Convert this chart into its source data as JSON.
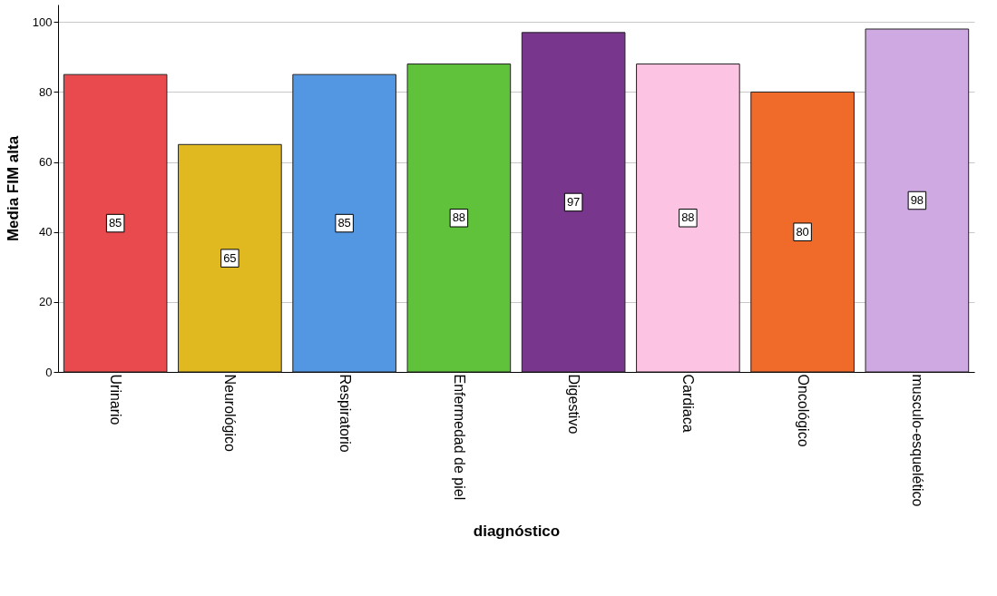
{
  "chart_data": {
    "type": "bar",
    "xlabel": "diagnóstico",
    "ylabel": "Media FIM alta",
    "categories": [
      "Urinario",
      "Neurológico",
      "Respiratorio",
      "Enfermedad de piel",
      "Digestivo",
      "Cardiaca",
      "Oncológico",
      "musculo-esquelético"
    ],
    "values": [
      85,
      65,
      85,
      88,
      97,
      88,
      80,
      98
    ],
    "colors": [
      "#e84a4d",
      "#e0b81f",
      "#5397e3",
      "#60c23a",
      "#78378c",
      "#fdc3e2",
      "#f06a2a",
      "#cfa9e2"
    ],
    "ylim": [
      0,
      105
    ],
    "yticks": [
      0,
      20,
      40,
      60,
      80,
      100
    ],
    "grid": "y",
    "data_labels": true
  }
}
